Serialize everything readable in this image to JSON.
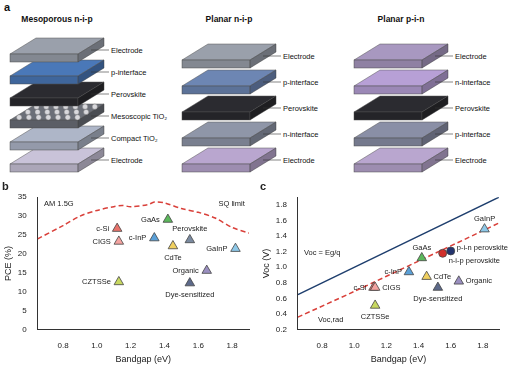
{
  "diagram": {
    "title": "a",
    "devices": [
      {
        "name": "Mesoporous n-i-p",
        "layers": [
          "Electrode",
          "Compact TiO₂",
          "Mesoscopic TiO₂",
          "Perovskite",
          "p-interface",
          "Electrode"
        ]
      },
      {
        "name": "Planar n-i-p",
        "layers": [
          "Electrode",
          "n-interface",
          "Perovskite",
          "p-interface",
          "Electrode"
        ]
      },
      {
        "name": "Planar p-i-n",
        "layers": [
          "Electrode",
          "p-interface",
          "Perovskite",
          "n-interface",
          "Electrode"
        ]
      }
    ]
  },
  "chart_data": [
    {
      "type": "scatter",
      "title": "b",
      "x_label": "Bandgap (eV)",
      "y_label": "PCE (%)",
      "annotations": [
        "AM 1.5G"
      ],
      "xlim": [
        0.65,
        1.9
      ],
      "xticks": [
        0.8,
        {
          "value": 1,
          "label": "1.0"
        },
        1.2,
        1.4,
        1.6,
        1.8
      ],
      "ylim": [
        0,
        35
      ],
      "yticks": [
        0,
        5,
        10,
        15,
        20,
        25,
        30,
        35
      ],
      "grid": false,
      "series": [
        {
          "name": "SQ limit",
          "type": "line",
          "line_style": "dashed",
          "color": "#d9403a",
          "x": [
            0.65,
            0.8,
            0.9,
            1.0,
            1.1,
            1.15,
            1.2,
            1.3,
            1.34,
            1.4,
            1.5,
            1.6,
            1.7,
            1.8,
            1.9
          ],
          "values": [
            24,
            27.5,
            30,
            31.5,
            32.5,
            32.8,
            32.5,
            33,
            33.7,
            33.5,
            32,
            31,
            29.5,
            27,
            25.5
          ]
        },
        {
          "name": "c-Si",
          "type": "scatter",
          "marker": "triangle",
          "color": "#e8736b",
          "x": [
            1.12
          ],
          "values": [
            26.7
          ]
        },
        {
          "name": "CIGS",
          "type": "scatter",
          "marker": "triangle",
          "color": "#f4a3a0",
          "x": [
            1.13
          ],
          "values": [
            23.3
          ]
        },
        {
          "name": "c-InP",
          "type": "scatter",
          "marker": "triangle",
          "color": "#5aa0d8",
          "x": [
            1.34
          ],
          "values": [
            24.2
          ]
        },
        {
          "name": "GaAs",
          "type": "scatter",
          "marker": "triangle",
          "color": "#5cb85c",
          "x": [
            1.42
          ],
          "values": [
            29.1
          ]
        },
        {
          "name": "CdTe",
          "type": "scatter",
          "marker": "triangle",
          "color": "#f0d060",
          "x": [
            1.45
          ],
          "values": [
            22.1
          ]
        },
        {
          "name": "Perovskite",
          "type": "scatter",
          "marker": "triangle",
          "color": "#7a8aa0",
          "x": [
            1.55
          ],
          "values": [
            23.7
          ]
        },
        {
          "name": "GaInP",
          "type": "scatter",
          "marker": "triangle",
          "color": "#8ec8e8",
          "x": [
            1.82
          ],
          "values": [
            21.4
          ]
        },
        {
          "name": "Organic",
          "type": "scatter",
          "marker": "triangle",
          "color": "#9a8fc0",
          "x": [
            1.65
          ],
          "values": [
            15.6
          ]
        },
        {
          "name": "Dye-sensitized",
          "type": "scatter",
          "marker": "triangle",
          "color": "#5d6a8a",
          "x": [
            1.55
          ],
          "values": [
            12.3
          ]
        },
        {
          "name": "CZTSSe",
          "type": "scatter",
          "marker": "triangle",
          "color": "#c8d860",
          "x": [
            1.13
          ],
          "values": [
            12.6
          ]
        }
      ]
    },
    {
      "type": "scatter",
      "title": "c",
      "x_label": "Bandgap (eV)",
      "y_label": "Voc (V)",
      "xlim": [
        0.65,
        1.9
      ],
      "xticks": [
        0.8,
        {
          "value": 1,
          "label": "1.0"
        },
        1.2,
        1.4,
        1.6,
        1.8
      ],
      "ylim": [
        0.2,
        1.9
      ],
      "yticks": [
        0.2,
        0.4,
        0.6,
        0.8,
        {
          "value": 1,
          "label": "1.0"
        },
        1.2,
        1.4,
        1.6,
        1.8
      ],
      "grid": false,
      "series": [
        {
          "name": "Voc = Eg/q",
          "type": "line",
          "line_style": "solid",
          "color": "#1f3f6e",
          "x": [
            0.65,
            1.9
          ],
          "values": [
            0.65,
            1.9
          ]
        },
        {
          "name": "Voc,rad",
          "type": "line",
          "line_style": "dashed",
          "color": "#d9403a",
          "x": [
            0.65,
            1.0,
            1.4,
            1.8,
            1.9
          ],
          "values": [
            0.36,
            0.69,
            1.08,
            1.47,
            1.57
          ]
        },
        {
          "name": "GaInP",
          "type": "scatter",
          "marker": "triangle",
          "color": "#8ec8e8",
          "x": [
            1.81
          ],
          "values": [
            1.49
          ]
        },
        {
          "name": "p-i-n perovskite",
          "type": "scatter",
          "marker": "circle",
          "color": "#23336e",
          "x": [
            1.6
          ],
          "values": [
            1.21
          ]
        },
        {
          "name": "n-i-p perovskite",
          "type": "scatter",
          "marker": "circle",
          "color": "#d2302c",
          "x": [
            1.55
          ],
          "values": [
            1.18
          ]
        },
        {
          "name": "GaAs",
          "type": "scatter",
          "marker": "triangle",
          "color": "#5cb85c",
          "x": [
            1.42
          ],
          "values": [
            1.12
          ]
        },
        {
          "name": "c-InP",
          "type": "scatter",
          "marker": "triangle",
          "color": "#5aa0d8",
          "x": [
            1.34
          ],
          "values": [
            0.94
          ]
        },
        {
          "name": "CdTe",
          "type": "scatter",
          "marker": "triangle",
          "color": "#f0d060",
          "x": [
            1.45
          ],
          "values": [
            0.88
          ]
        },
        {
          "name": "Organic",
          "type": "scatter",
          "marker": "triangle",
          "color": "#9a8fc0",
          "x": [
            1.65
          ],
          "values": [
            0.82
          ]
        },
        {
          "name": "Dye-sensitized",
          "type": "scatter",
          "marker": "triangle",
          "color": "#5d6a8a",
          "x": [
            1.52
          ],
          "values": [
            0.74
          ]
        },
        {
          "name": "CIGS",
          "type": "scatter",
          "marker": "triangle",
          "color": "#f4a3a0",
          "x": [
            1.13
          ],
          "values": [
            0.74
          ]
        },
        {
          "name": "c-Si",
          "type": "scatter",
          "marker": "triangle",
          "color": "#e8736b",
          "x": [
            1.12
          ],
          "values": [
            0.74
          ]
        },
        {
          "name": "CZTSSe",
          "type": "scatter",
          "marker": "triangle",
          "color": "#c8d860",
          "x": [
            1.13
          ],
          "values": [
            0.51
          ]
        }
      ]
    }
  ]
}
